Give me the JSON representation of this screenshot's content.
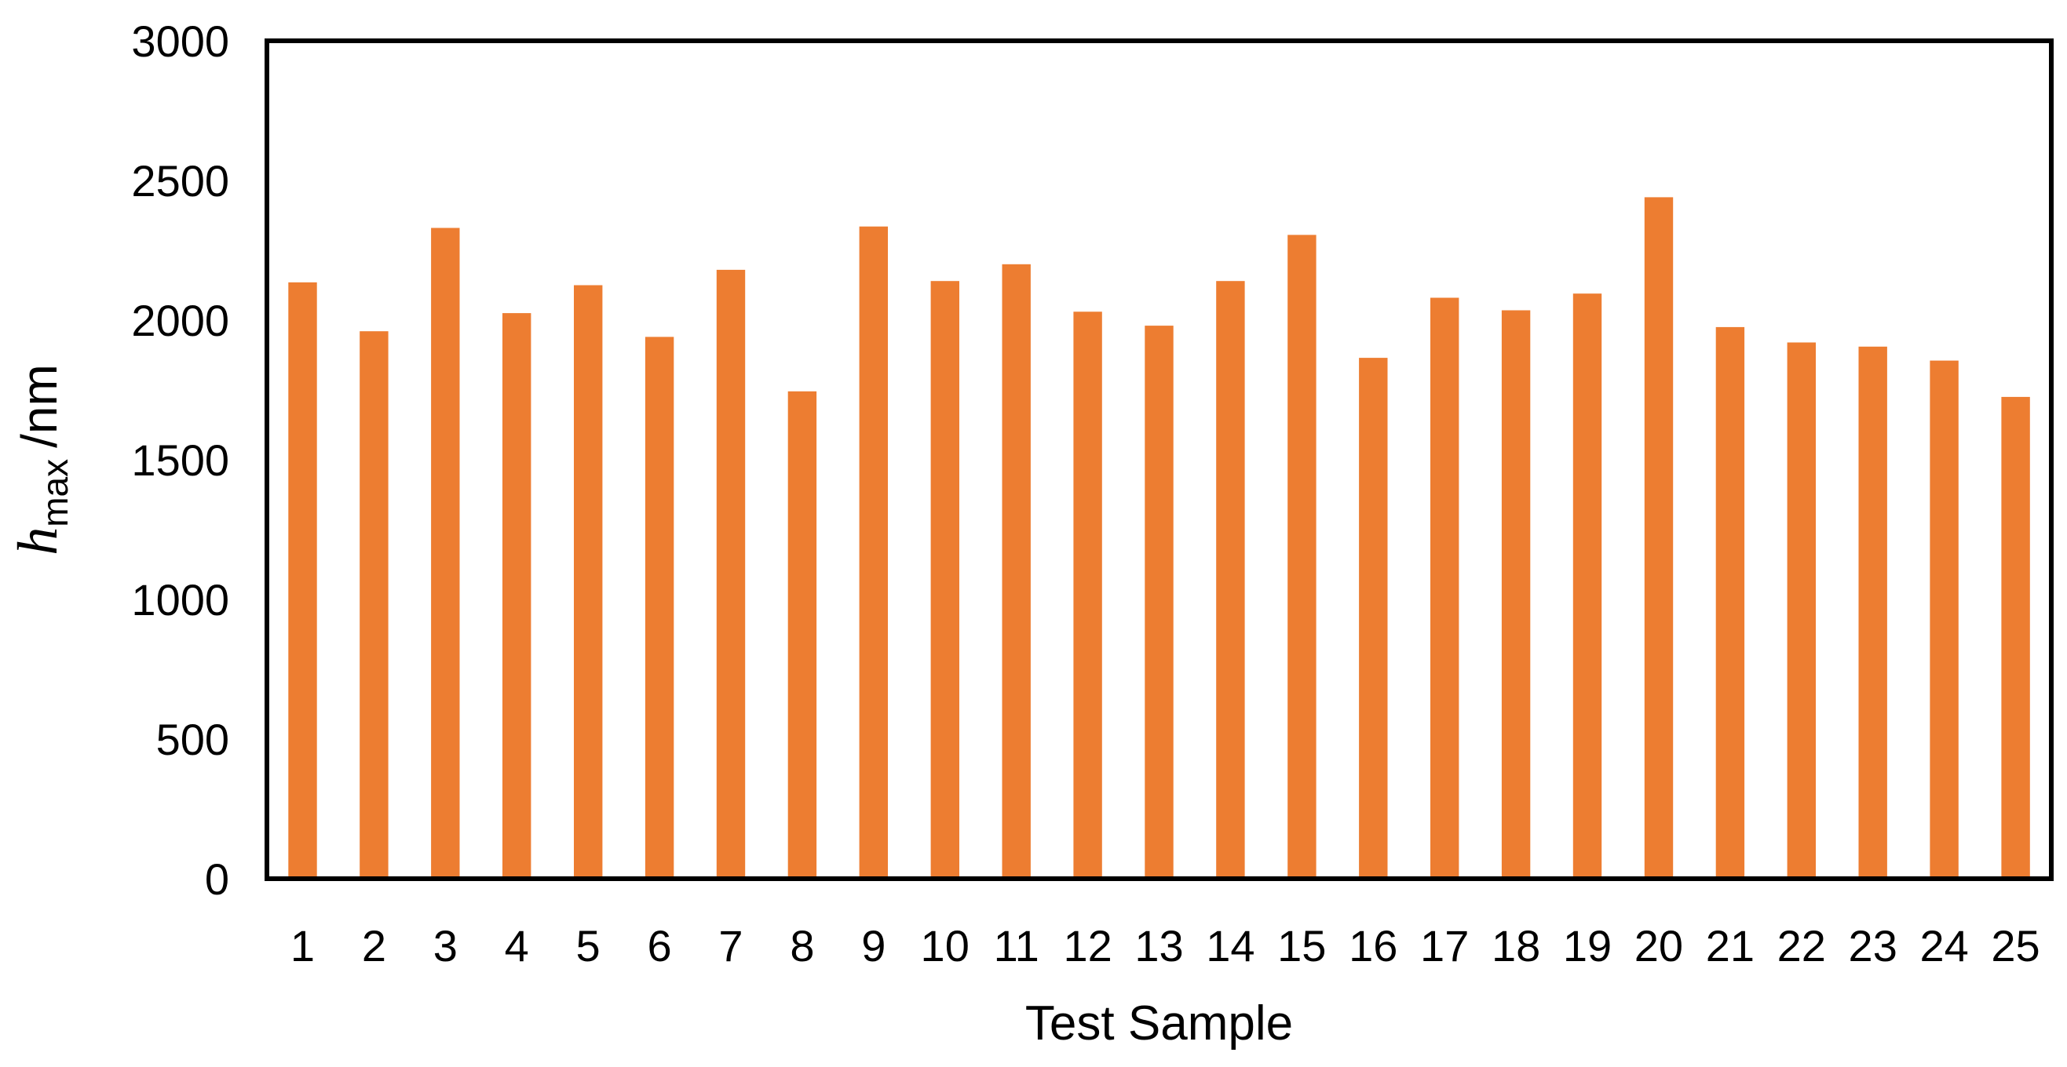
{
  "chart_data": {
    "type": "bar",
    "title": "",
    "xlabel": "Test Sample",
    "ylabel": {
      "symbol": "h",
      "subscript": "max",
      "unit": "/nm"
    },
    "ylim": [
      0,
      3000
    ],
    "yticks": [
      "0",
      "500",
      "1000",
      "1500",
      "2000",
      "2500",
      "3000"
    ],
    "categories": [
      "1",
      "2",
      "3",
      "4",
      "5",
      "6",
      "7",
      "8",
      "9",
      "10",
      "11",
      "12",
      "13",
      "14",
      "15",
      "16",
      "17",
      "18",
      "19",
      "20",
      "21",
      "22",
      "23",
      "24",
      "25"
    ],
    "values": [
      2135,
      1960,
      2330,
      2025,
      2125,
      1940,
      2180,
      1745,
      2335,
      2140,
      2200,
      2030,
      1980,
      2140,
      2305,
      1865,
      2080,
      2035,
      2095,
      2440,
      1975,
      1920,
      1905,
      1855,
      1725
    ],
    "colors": {
      "bar": "#ED7D31",
      "frame": "#000000"
    },
    "grid": false,
    "legend": "none"
  }
}
